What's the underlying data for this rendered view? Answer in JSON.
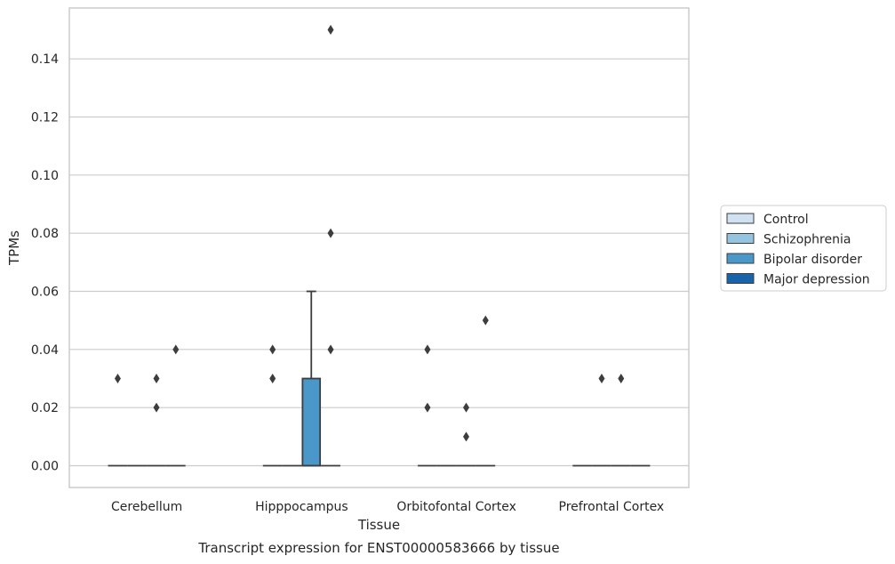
{
  "chart_data": {
    "type": "box",
    "title": "",
    "xlabel": "Tissue",
    "ylabel": "TPMs",
    "caption": "Transcript expression for ENST00000583666 by tissue",
    "ylim": [
      -0.0075,
      0.1575
    ],
    "yticks": [
      "0.00",
      "0.02",
      "0.04",
      "0.06",
      "0.08",
      "0.10",
      "0.12",
      "0.14"
    ],
    "grid": "horizontal",
    "legend_position": "right",
    "categories": [
      "Cerebellum",
      "Hipppocampus",
      "Orbitofontal Cortex",
      "Prefrontal Cortex"
    ],
    "series": [
      {
        "name": "Control",
        "color": "#d0e1f2"
      },
      {
        "name": "Schizophrenia",
        "color": "#94c4df"
      },
      {
        "name": "Bipolar disorder",
        "color": "#4a98c9"
      },
      {
        "name": "Major depression",
        "color": "#1764ab"
      }
    ],
    "boxes": [
      {
        "category": 0,
        "series": 0,
        "q1": 0,
        "median": 0,
        "q3": 0,
        "whisker_low": 0,
        "whisker_high": 0,
        "outliers": [
          0.03
        ]
      },
      {
        "category": 0,
        "series": 1,
        "q1": 0,
        "median": 0,
        "q3": 0,
        "whisker_low": 0,
        "whisker_high": 0,
        "outliers": []
      },
      {
        "category": 0,
        "series": 2,
        "q1": 0,
        "median": 0,
        "q3": 0,
        "whisker_low": 0,
        "whisker_high": 0,
        "outliers": [
          0.03,
          0.02
        ]
      },
      {
        "category": 0,
        "series": 3,
        "q1": 0,
        "median": 0,
        "q3": 0,
        "whisker_low": 0,
        "whisker_high": 0,
        "outliers": [
          0.04
        ]
      },
      {
        "category": 1,
        "series": 0,
        "q1": 0,
        "median": 0,
        "q3": 0,
        "whisker_low": 0,
        "whisker_high": 0,
        "outliers": [
          0.04,
          0.03
        ]
      },
      {
        "category": 1,
        "series": 1,
        "q1": 0,
        "median": 0,
        "q3": 0,
        "whisker_low": 0,
        "whisker_high": 0,
        "outliers": []
      },
      {
        "category": 1,
        "series": 2,
        "q1": 0,
        "median": 0,
        "q3": 0.03,
        "whisker_low": 0,
        "whisker_high": 0.06,
        "outliers": []
      },
      {
        "category": 1,
        "series": 3,
        "q1": 0,
        "median": 0,
        "q3": 0,
        "whisker_low": 0,
        "whisker_high": 0,
        "outliers": [
          0.15,
          0.08,
          0.04
        ]
      },
      {
        "category": 2,
        "series": 0,
        "q1": 0,
        "median": 0,
        "q3": 0,
        "whisker_low": 0,
        "whisker_high": 0,
        "outliers": [
          0.04,
          0.02
        ]
      },
      {
        "category": 2,
        "series": 1,
        "q1": 0,
        "median": 0,
        "q3": 0,
        "whisker_low": 0,
        "whisker_high": 0,
        "outliers": []
      },
      {
        "category": 2,
        "series": 2,
        "q1": 0,
        "median": 0,
        "q3": 0,
        "whisker_low": 0,
        "whisker_high": 0,
        "outliers": [
          0.02,
          0.01
        ]
      },
      {
        "category": 2,
        "series": 3,
        "q1": 0,
        "median": 0,
        "q3": 0,
        "whisker_low": 0,
        "whisker_high": 0,
        "outliers": [
          0.05
        ]
      },
      {
        "category": 3,
        "series": 0,
        "q1": 0,
        "median": 0,
        "q3": 0,
        "whisker_low": 0,
        "whisker_high": 0,
        "outliers": []
      },
      {
        "category": 3,
        "series": 1,
        "q1": 0,
        "median": 0,
        "q3": 0,
        "whisker_low": 0,
        "whisker_high": 0,
        "outliers": [
          0.03
        ]
      },
      {
        "category": 3,
        "series": 2,
        "q1": 0,
        "median": 0,
        "q3": 0,
        "whisker_low": 0,
        "whisker_high": 0,
        "outliers": [
          0.03
        ]
      },
      {
        "category": 3,
        "series": 3,
        "q1": 0,
        "median": 0,
        "q3": 0,
        "whisker_low": 0,
        "whisker_high": 0,
        "outliers": []
      }
    ]
  }
}
